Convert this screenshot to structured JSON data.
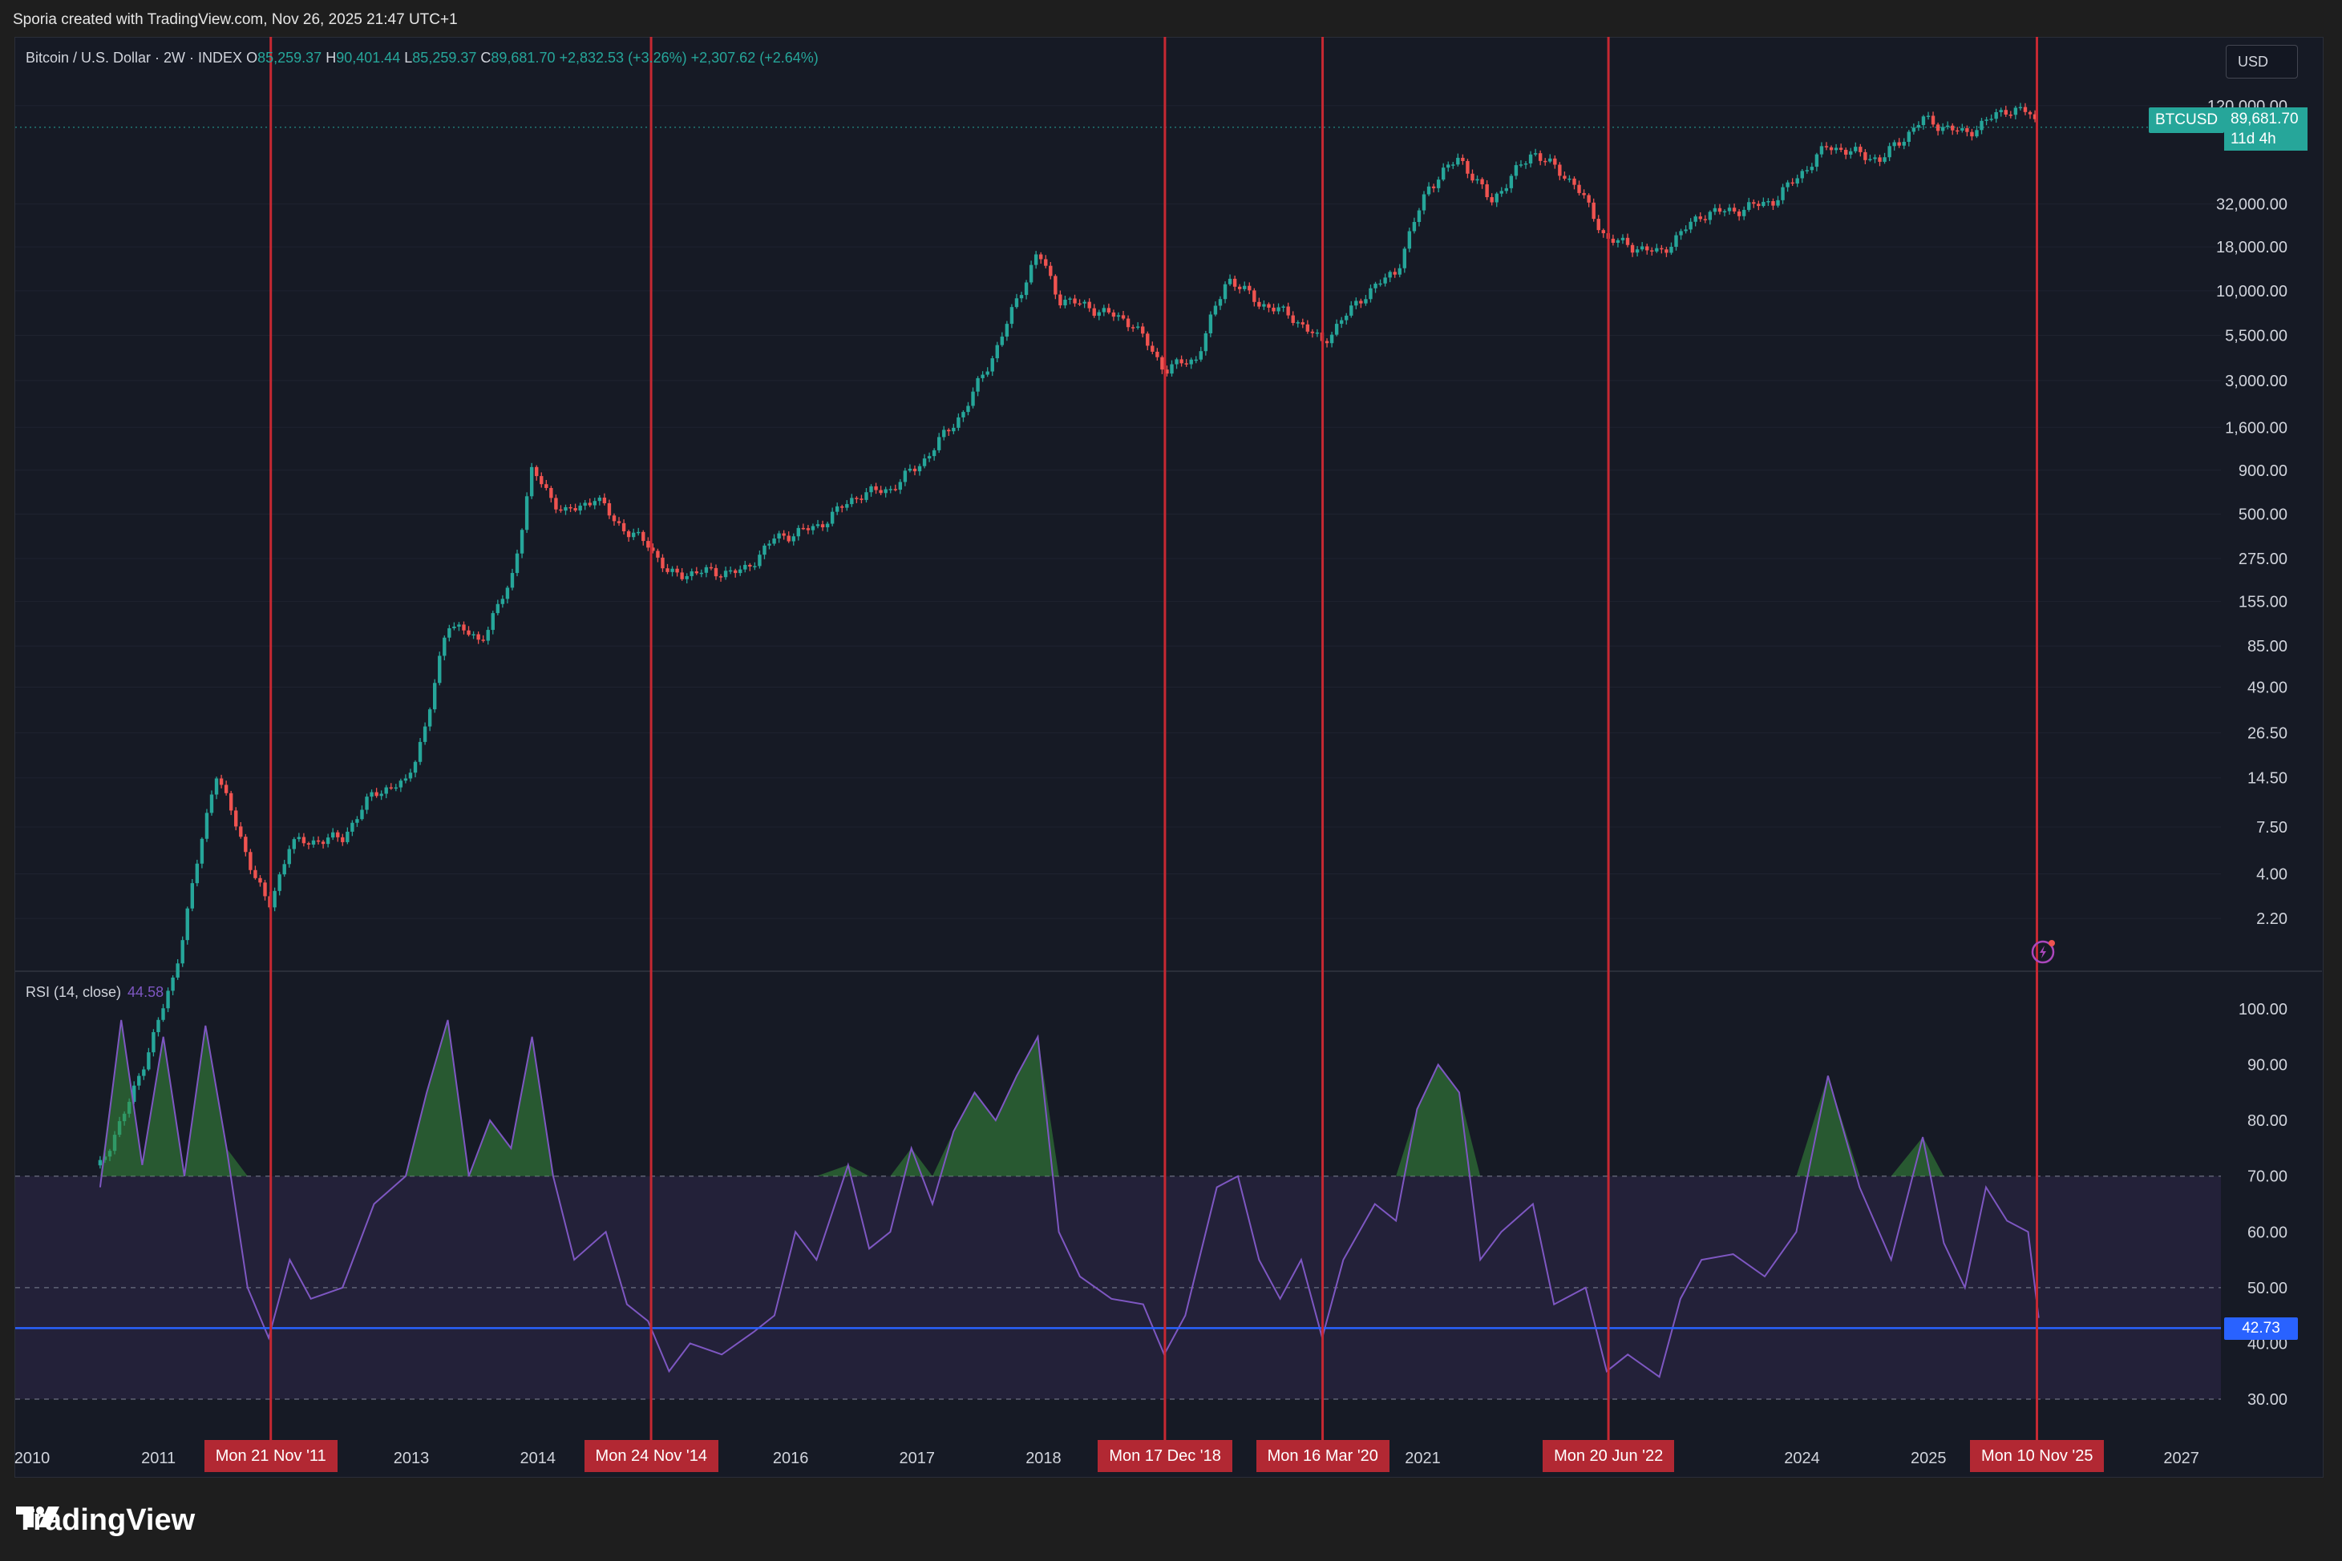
{
  "header": {
    "text": "Sporia created with TradingView.com, Nov 26, 2025 21:47 UTC+1"
  },
  "legend": {
    "symbol": "Bitcoin / U.S. Dollar · 2W · INDEX",
    "open_label": "O",
    "open": "85,259.37",
    "high_label": "H",
    "high": "90,401.44",
    "low_label": "L",
    "low": "85,259.37",
    "close_label": "C",
    "close": "89,681.70",
    "change1": "+2,832.53 (+3.26%)",
    "change2": "+2,307.62 (+2.64%)"
  },
  "currency": "USD",
  "price_badge": {
    "ticker": "BTCUSD",
    "price": "89,681.70",
    "countdown": "11d 4h"
  },
  "rsi": {
    "label": "RSI (14, close)",
    "value": "44.58",
    "marker": "42.73"
  },
  "footer": {
    "brand": "TradingView"
  },
  "colors": {
    "up": "#26a69a",
    "down": "#ef5350",
    "rsi_line": "#7e57c2",
    "marker_line": "#2962ff",
    "vline": "#c62832",
    "bg": "#161a25"
  },
  "icons": {
    "alert": "lightning-alert-icon",
    "logo": "tradingview-logo-icon"
  },
  "chart_data": [
    {
      "type": "candlestick",
      "title": "Bitcoin / U.S. Dollar · 2W · INDEX",
      "y_scale": "log",
      "y_ticks": [
        "120,000.00",
        "32,000.00",
        "18,000.00",
        "10,000.00",
        "5,500.00",
        "3,000.00",
        "1,600.00",
        "900.00",
        "500.00",
        "275.00",
        "155.00",
        "85.00",
        "49.00",
        "26.50",
        "14.50",
        "7.50",
        "4.00",
        "2.20"
      ],
      "y_tick_values": [
        120000,
        32000,
        18000,
        10000,
        5500,
        3000,
        1600,
        900,
        500,
        275,
        155,
        85,
        49,
        26.5,
        14.5,
        7.5,
        4,
        2.2
      ],
      "x_ticks": [
        "2010",
        "2011",
        "2013",
        "2014",
        "2016",
        "2017",
        "2018",
        "2021",
        "2024",
        "2025",
        "2027"
      ],
      "x_tick_years": [
        2010,
        2011,
        2013,
        2014,
        2016,
        2017,
        2018,
        2021,
        2024,
        2025,
        2027
      ],
      "series": [
        {
          "name": "BTCUSD",
          "points": [
            [
              "2010-07",
              0.08
            ],
            [
              "2010-10",
              0.2
            ],
            [
              "2011-02",
              1.0
            ],
            [
              "2011-06",
              16
            ],
            [
              "2011-09",
              5
            ],
            [
              "2011-11",
              2.5
            ],
            [
              "2012-01",
              6
            ],
            [
              "2012-06",
              6.5
            ],
            [
              "2012-09",
              12
            ],
            [
              "2012-12",
              13.5
            ],
            [
              "2013-02",
              30
            ],
            [
              "2013-04",
              120
            ],
            [
              "2013-07",
              90
            ],
            [
              "2013-10",
              200
            ],
            [
              "2013-12",
              900
            ],
            [
              "2014-03",
              500
            ],
            [
              "2014-06",
              620
            ],
            [
              "2014-09",
              390
            ],
            [
              "2014-11",
              340
            ],
            [
              "2015-01",
              220
            ],
            [
              "2015-04",
              230
            ],
            [
              "2015-08",
              230
            ],
            [
              "2015-11",
              360
            ],
            [
              "2016-03",
              420
            ],
            [
              "2016-07",
              650
            ],
            [
              "2016-10",
              700
            ],
            [
              "2017-01",
              1000
            ],
            [
              "2017-05",
              2000
            ],
            [
              "2017-08",
              4500
            ],
            [
              "2017-12",
              17000
            ],
            [
              "2018-02",
              9000
            ],
            [
              "2018-05",
              8000
            ],
            [
              "2018-09",
              6500
            ],
            [
              "2018-12",
              3500
            ],
            [
              "2019-03",
              4000
            ],
            [
              "2019-06",
              12000
            ],
            [
              "2019-09",
              8500
            ],
            [
              "2019-12",
              7200
            ],
            [
              "2020-03",
              5000
            ],
            [
              "2020-07",
              9500
            ],
            [
              "2020-10",
              13000
            ],
            [
              "2021-01",
              40000
            ],
            [
              "2021-04",
              60000
            ],
            [
              "2021-07",
              33000
            ],
            [
              "2021-11",
              65000
            ],
            [
              "2022-03",
              42000
            ],
            [
              "2022-06",
              20000
            ],
            [
              "2022-11",
              16500
            ],
            [
              "2023-03",
              28000
            ],
            [
              "2023-07",
              30000
            ],
            [
              "2023-10",
              34000
            ],
            [
              "2024-03",
              70000
            ],
            [
              "2024-08",
              58000
            ],
            [
              "2024-12",
              100000
            ],
            [
              "2025-04",
              82000
            ],
            [
              "2025-08",
              115000
            ],
            [
              "2025-10",
              110000
            ],
            [
              "2025-11",
              89681.7
            ]
          ]
        }
      ]
    },
    {
      "type": "line",
      "title": "RSI (14, close)",
      "y_ticks": [
        "100.00",
        "90.00",
        "80.00",
        "70.00",
        "60.00",
        "50.00",
        "40.00",
        "30.00"
      ],
      "y_tick_values": [
        100,
        90,
        80,
        70,
        60,
        50,
        40,
        30
      ],
      "bands": [
        70,
        30
      ],
      "midline": 50,
      "marker_value": 42.73,
      "series": [
        {
          "name": "RSI",
          "points": [
            [
              "2010-07",
              68
            ],
            [
              "2010-09",
              98
            ],
            [
              "2010-11",
              72
            ],
            [
              "2011-01",
              95
            ],
            [
              "2011-03",
              70
            ],
            [
              "2011-05",
              97
            ],
            [
              "2011-07",
              75
            ],
            [
              "2011-09",
              50
            ],
            [
              "2011-11",
              41
            ],
            [
              "2012-01",
              55
            ],
            [
              "2012-03",
              48
            ],
            [
              "2012-06",
              50
            ],
            [
              "2012-09",
              65
            ],
            [
              "2012-12",
              70
            ],
            [
              "2013-02",
              85
            ],
            [
              "2013-04",
              98
            ],
            [
              "2013-06",
              70
            ],
            [
              "2013-08",
              80
            ],
            [
              "2013-10",
              75
            ],
            [
              "2013-12",
              95
            ],
            [
              "2014-02",
              70
            ],
            [
              "2014-04",
              55
            ],
            [
              "2014-07",
              60
            ],
            [
              "2014-09",
              47
            ],
            [
              "2014-11",
              44
            ],
            [
              "2015-01",
              35
            ],
            [
              "2015-03",
              40
            ],
            [
              "2015-06",
              38
            ],
            [
              "2015-09",
              42
            ],
            [
              "2015-11",
              45
            ],
            [
              "2016-01",
              60
            ],
            [
              "2016-03",
              55
            ],
            [
              "2016-06",
              72
            ],
            [
              "2016-08",
              57
            ],
            [
              "2016-10",
              60
            ],
            [
              "2016-12",
              75
            ],
            [
              "2017-02",
              65
            ],
            [
              "2017-04",
              78
            ],
            [
              "2017-06",
              85
            ],
            [
              "2017-08",
              80
            ],
            [
              "2017-10",
              88
            ],
            [
              "2017-12",
              95
            ],
            [
              "2018-02",
              60
            ],
            [
              "2018-04",
              52
            ],
            [
              "2018-07",
              48
            ],
            [
              "2018-10",
              47
            ],
            [
              "2018-12",
              38
            ],
            [
              "2019-02",
              45
            ],
            [
              "2019-05",
              68
            ],
            [
              "2019-07",
              70
            ],
            [
              "2019-09",
              55
            ],
            [
              "2019-11",
              48
            ],
            [
              "2020-01",
              55
            ],
            [
              "2020-03",
              41
            ],
            [
              "2020-05",
              55
            ],
            [
              "2020-08",
              65
            ],
            [
              "2020-10",
              62
            ],
            [
              "2020-12",
              82
            ],
            [
              "2021-02",
              90
            ],
            [
              "2021-04",
              85
            ],
            [
              "2021-06",
              55
            ],
            [
              "2021-08",
              60
            ],
            [
              "2021-11",
              65
            ],
            [
              "2022-01",
              47
            ],
            [
              "2022-04",
              50
            ],
            [
              "2022-06",
              35
            ],
            [
              "2022-08",
              38
            ],
            [
              "2022-11",
              34
            ],
            [
              "2023-01",
              48
            ],
            [
              "2023-03",
              55
            ],
            [
              "2023-06",
              56
            ],
            [
              "2023-09",
              52
            ],
            [
              "2023-12",
              60
            ],
            [
              "2024-03",
              88
            ],
            [
              "2024-06",
              68
            ],
            [
              "2024-09",
              55
            ],
            [
              "2024-12",
              77
            ],
            [
              "2025-02",
              58
            ],
            [
              "2025-04",
              50
            ],
            [
              "2025-06",
              68
            ],
            [
              "2025-08",
              62
            ],
            [
              "2025-10",
              60
            ],
            [
              "2025-11",
              44.58
            ]
          ]
        }
      ]
    }
  ],
  "date_markers": [
    {
      "date": "2011-11-21",
      "label": "Mon 21 Nov '11"
    },
    {
      "date": "2014-11-24",
      "label": "Mon 24 Nov '14"
    },
    {
      "date": "2018-12-17",
      "label": "Mon 17 Dec '18"
    },
    {
      "date": "2020-03-16",
      "label": "Mon 16 Mar '20"
    },
    {
      "date": "2022-06-20",
      "label": "Mon 20 Jun '22"
    },
    {
      "date": "2025-11-10",
      "label": "Mon 10 Nov '25"
    }
  ]
}
